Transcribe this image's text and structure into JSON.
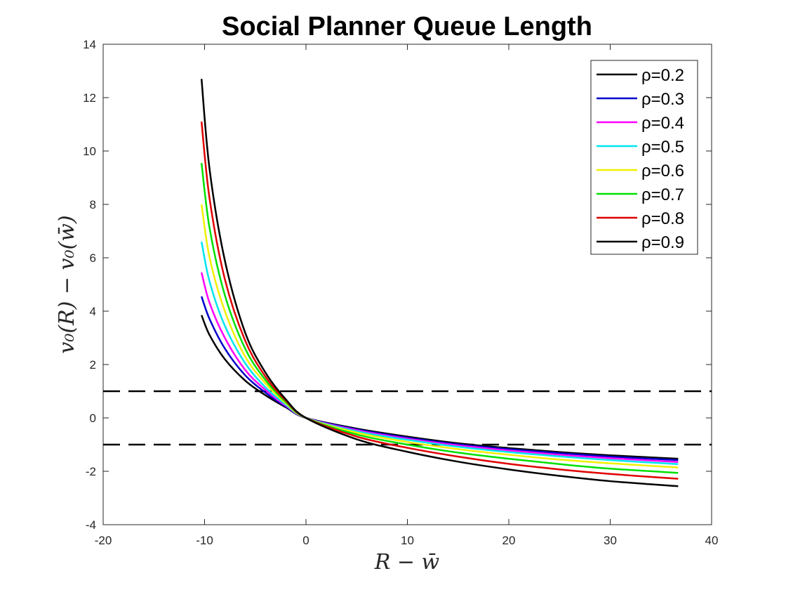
{
  "chart_data": {
    "type": "line",
    "title": "Social Planner Queue Length",
    "xlabel": "R − w̄",
    "ylabel": "v₀(R) − v₀(w̄)",
    "xlim": [
      -20,
      40
    ],
    "ylim": [
      -4,
      14
    ],
    "xticks": [
      "-20",
      "-10",
      "0",
      "10",
      "20",
      "30",
      "40"
    ],
    "yticks": [
      "-4",
      "-2",
      "0",
      "2",
      "4",
      "6",
      "8",
      "10",
      "12",
      "14"
    ],
    "grid": false,
    "legend_position": "top-right",
    "x": [
      -10.3,
      -9.5,
      -8,
      -6,
      -4,
      -2,
      0,
      5,
      10,
      15,
      20,
      25,
      30,
      36.7
    ],
    "series": [
      {
        "name": "ρ=0.2",
        "color": "#000000",
        "values": [
          3.85,
          3.1,
          2.2,
          1.4,
          0.85,
          0.4,
          0.0,
          -0.4,
          -0.7,
          -0.95,
          -1.13,
          -1.28,
          -1.4,
          -1.53
        ]
      },
      {
        "name": "ρ=0.3",
        "color": "#0000cc",
        "values": [
          4.55,
          3.7,
          2.6,
          1.6,
          0.95,
          0.43,
          0.0,
          -0.43,
          -0.74,
          -0.99,
          -1.17,
          -1.32,
          -1.45,
          -1.58
        ]
      },
      {
        "name": "ρ=0.4",
        "color": "#ff00ff",
        "values": [
          5.45,
          4.3,
          3.0,
          1.8,
          1.05,
          0.46,
          0.0,
          -0.46,
          -0.78,
          -1.03,
          -1.22,
          -1.38,
          -1.51,
          -1.65
        ]
      },
      {
        "name": "ρ=0.5",
        "color": "#00e5ee",
        "values": [
          6.6,
          5.1,
          3.45,
          2.05,
          1.15,
          0.5,
          0.0,
          -0.5,
          -0.82,
          -1.08,
          -1.28,
          -1.44,
          -1.58,
          -1.73
        ]
      },
      {
        "name": "ρ=0.6",
        "color": "#f0f000",
        "values": [
          8.0,
          6.0,
          4.0,
          2.3,
          1.3,
          0.55,
          0.0,
          -0.55,
          -0.9,
          -1.17,
          -1.38,
          -1.56,
          -1.7,
          -1.86
        ]
      },
      {
        "name": "ρ=0.7",
        "color": "#00e000",
        "values": [
          9.55,
          7.1,
          4.6,
          2.6,
          1.42,
          0.6,
          0.0,
          -0.62,
          -1.0,
          -1.3,
          -1.53,
          -1.73,
          -1.9,
          -2.06
        ]
      },
      {
        "name": "ρ=0.8",
        "color": "#e00000",
        "values": [
          11.1,
          8.2,
          5.2,
          2.9,
          1.55,
          0.65,
          0.0,
          -0.7,
          -1.12,
          -1.45,
          -1.72,
          -1.93,
          -2.1,
          -2.28
        ]
      },
      {
        "name": "ρ=0.9",
        "color": "#000000",
        "values": [
          12.7,
          9.3,
          5.9,
          3.2,
          1.7,
          0.7,
          0.0,
          -0.8,
          -1.27,
          -1.64,
          -1.93,
          -2.17,
          -2.37,
          -2.56
        ]
      }
    ],
    "reference_lines": [
      {
        "y": 1,
        "style": "dashed",
        "color": "#000000"
      },
      {
        "y": -1,
        "style": "dashed",
        "color": "#000000"
      }
    ]
  }
}
